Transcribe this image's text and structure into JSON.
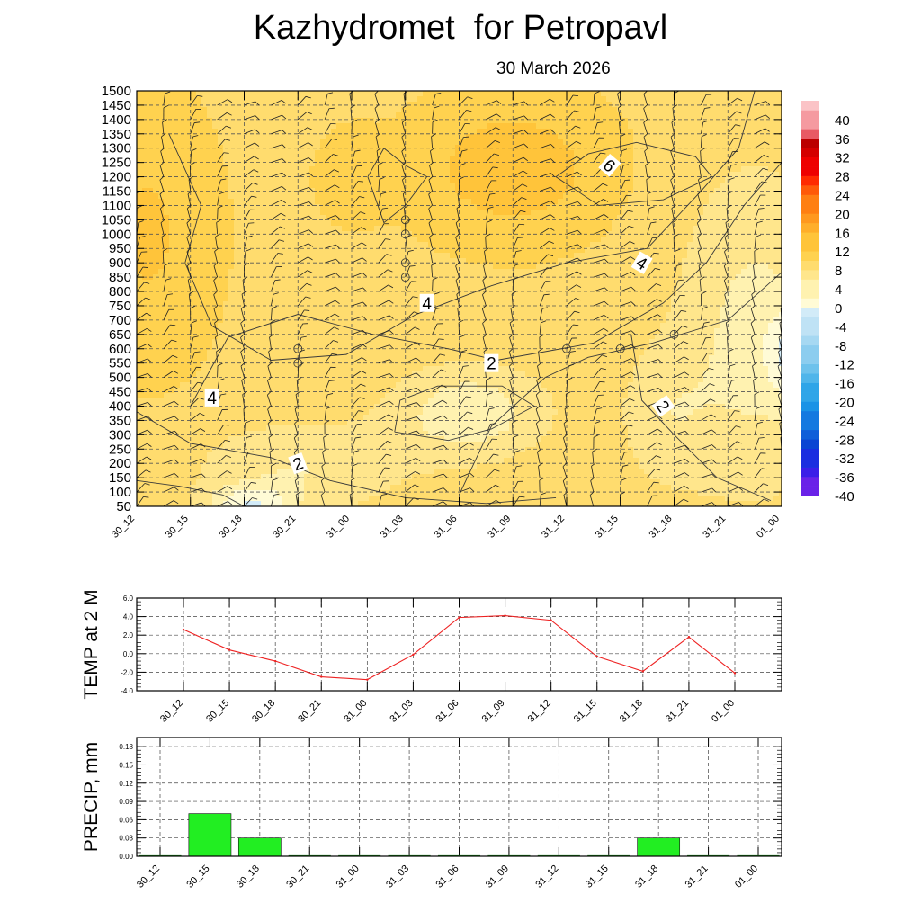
{
  "header": {
    "title": "Kazhydromet  for Petropavl",
    "date": "30 March 2026"
  },
  "colors": {
    "palette_warm": [
      "#fffbd6",
      "#fff2b0",
      "#ffe68c",
      "#ffdc6e",
      "#ffd24f",
      "#ffc43a",
      "#ffae2a",
      "#ff981e",
      "#ff7f12",
      "#ff5a08",
      "#ff2a00",
      "#ee0000",
      "#d40000",
      "#bb0000",
      "#e85a64",
      "#f59aa0",
      "#fbc3c6"
    ],
    "palette_cold": [
      "#d2ebf8",
      "#bfe2f5",
      "#a6d8f2",
      "#8ccdef",
      "#6ec2ec",
      "#4fb5ea",
      "#2fa5e8",
      "#1a93e6",
      "#1479e0",
      "#0e5fd9",
      "#0a45d3",
      "#1a2ee0",
      "#3a1ee8",
      "#6a22e8",
      "#8e3fe0"
    ],
    "line_temp": "#ee2222",
    "bar_precip": "#22ee22"
  },
  "chart_data": [
    {
      "type": "heatmap",
      "name": "vertical-section",
      "x_categories": [
        "30_12",
        "30_15",
        "30_18",
        "30_21",
        "31_00",
        "31_03",
        "31_06",
        "31_09",
        "31_12",
        "31_15",
        "31_18",
        "31_21",
        "01_00"
      ],
      "y_levels": [
        1500,
        1450,
        1400,
        1350,
        1300,
        1250,
        1200,
        1150,
        1100,
        1050,
        1000,
        950,
        900,
        850,
        800,
        750,
        700,
        650,
        600,
        550,
        500,
        450,
        400,
        350,
        300,
        250,
        200,
        150,
        100,
        50
      ],
      "contour_labels": [
        {
          "text": "6",
          "x": 8.8,
          "y": 1240
        },
        {
          "text": "4",
          "x": 9.4,
          "y": 900
        },
        {
          "text": "4",
          "x": 5.4,
          "y": 760
        },
        {
          "text": "2",
          "x": 6.6,
          "y": 550
        },
        {
          "text": "4",
          "x": 1.4,
          "y": 430
        },
        {
          "text": "2",
          "x": 9.8,
          "y": 400
        },
        {
          "text": "2",
          "x": 3.0,
          "y": 200
        }
      ],
      "colorbar_ticks": [
        40,
        36,
        32,
        28,
        24,
        20,
        16,
        12,
        8,
        4,
        0,
        -4,
        -8,
        -12,
        -16,
        -20,
        -24,
        -28,
        -32,
        -36,
        -40
      ],
      "colorbar_range": [
        -40,
        44
      ]
    },
    {
      "type": "line",
      "name": "temperature",
      "ylabel": "TEMP at 2 M",
      "categories": [
        "30_12",
        "30_15",
        "30_18",
        "30_21",
        "31_00",
        "31_03",
        "31_06",
        "31_09",
        "31_12",
        "31_15",
        "31_18",
        "31_21",
        "01_00"
      ],
      "values": [
        2.6,
        0.4,
        -0.8,
        -2.5,
        -2.8,
        -0.1,
        3.9,
        4.1,
        3.6,
        -0.3,
        -1.9,
        1.8,
        -2.1
      ],
      "yticks": [
        "6.0",
        "4.0",
        "2.0",
        "0.0",
        "-2.0",
        "-4.0"
      ],
      "ylim": [
        -4,
        6
      ]
    },
    {
      "type": "bar",
      "name": "precipitation",
      "ylabel": "PRECIP, mm",
      "categories": [
        "30_12",
        "30_15",
        "30_18",
        "30_21",
        "31_00",
        "31_03",
        "31_06",
        "31_09",
        "31_12",
        "31_15",
        "31_18",
        "31_21",
        "01_00"
      ],
      "values": [
        0,
        0.07,
        0.03,
        0,
        0,
        0,
        0,
        0,
        0,
        0,
        0.03,
        0,
        0
      ],
      "yticks": [
        "0.18",
        "0.15",
        "0.12",
        "0.09",
        "0.06",
        "0.03",
        "0.00"
      ],
      "ylim": [
        0,
        0.195
      ]
    }
  ]
}
